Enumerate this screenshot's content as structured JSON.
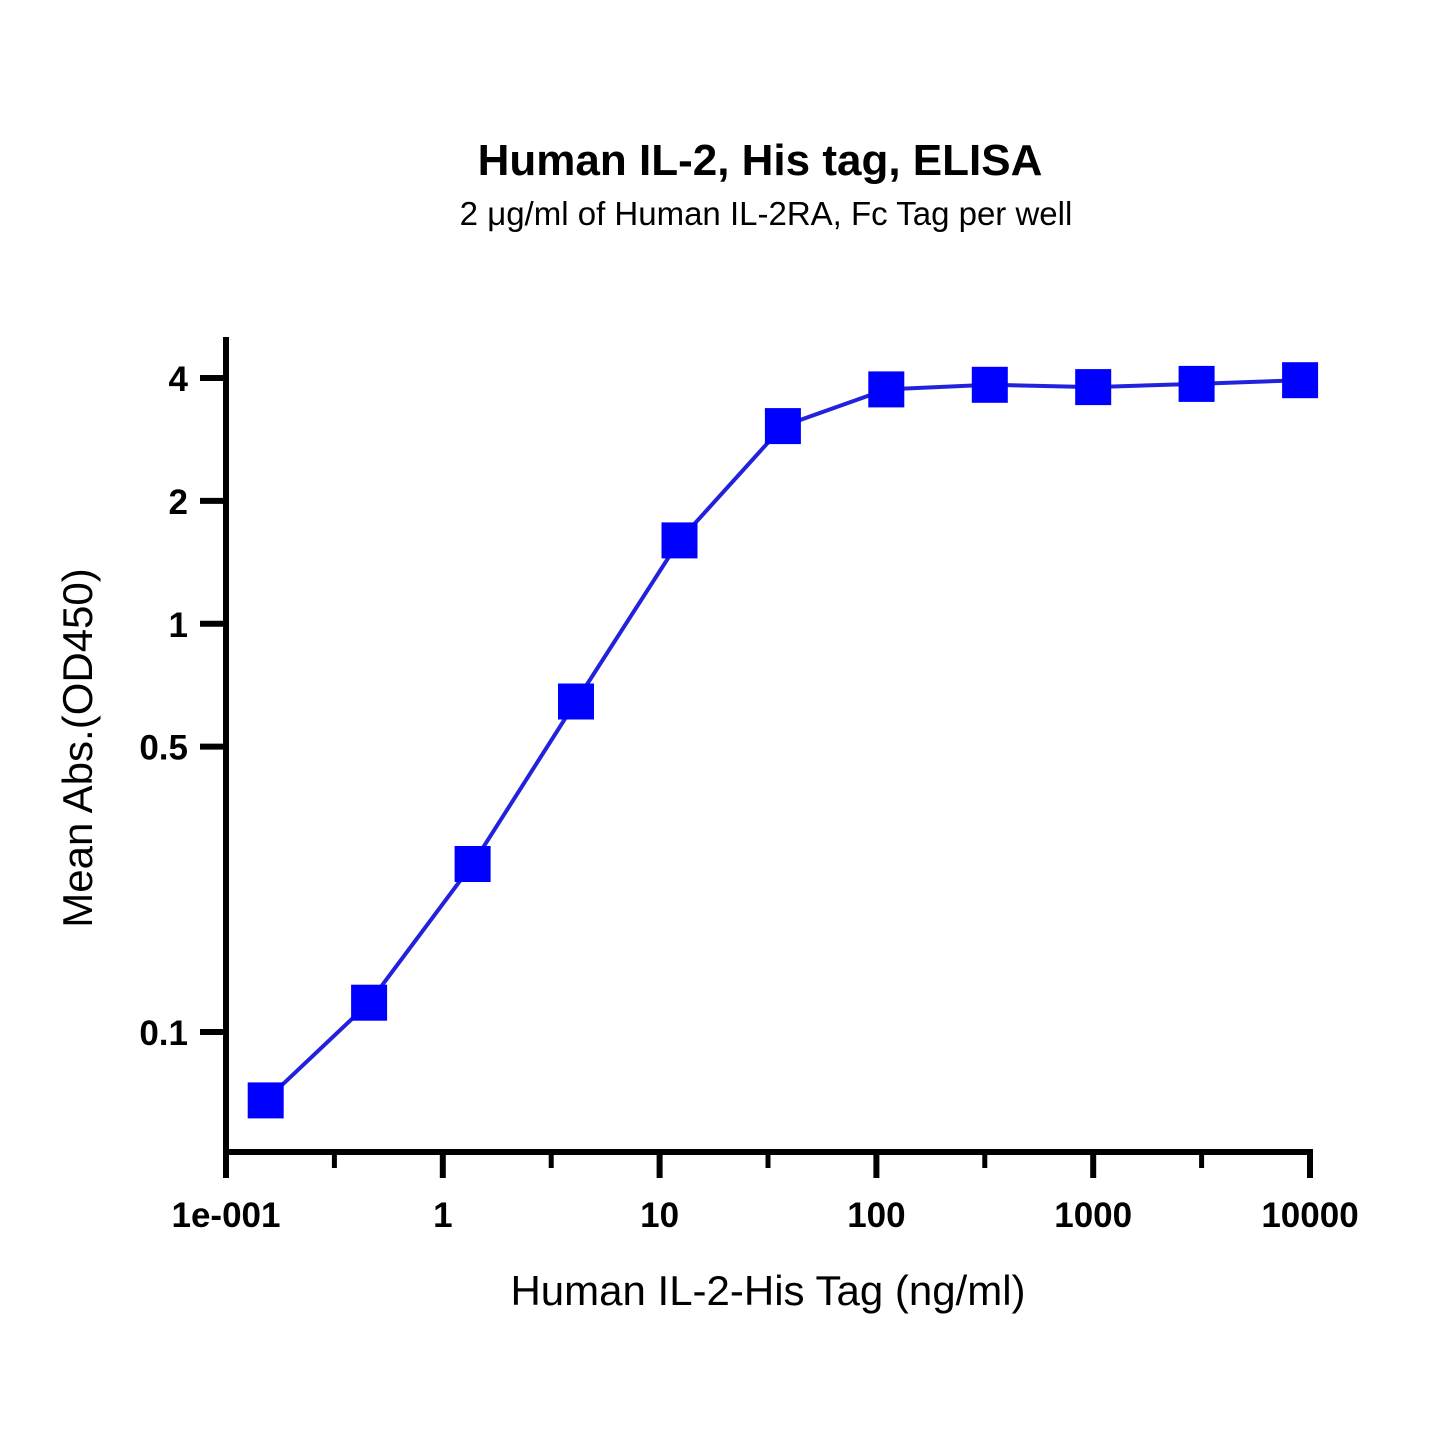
{
  "chart_data": {
    "type": "line",
    "title": "Human IL-2, His tag, ELISA",
    "subtitle": "2 μg/ml of Human IL-2RA, Fc Tag per well",
    "xlabel": "Human IL-2-His Tag (ng/ml)",
    "ylabel": "Mean Abs.(OD450)",
    "x_scale": "log",
    "y_scale": "log",
    "xlim": [
      0.1,
      10000
    ],
    "ylim": [
      0.05,
      5
    ],
    "x_ticks": [
      {
        "value": 0.1,
        "label": "1e-001"
      },
      {
        "value": 1,
        "label": "1"
      },
      {
        "value": 10,
        "label": "10"
      },
      {
        "value": 100,
        "label": "100"
      },
      {
        "value": 1000,
        "label": "1000"
      },
      {
        "value": 10000,
        "label": "10000"
      }
    ],
    "y_ticks": [
      {
        "value": 0.1,
        "label": "0.1"
      },
      {
        "value": 0.5,
        "label": "0.5"
      },
      {
        "value": 1,
        "label": "1"
      },
      {
        "value": 2,
        "label": "2"
      },
      {
        "value": 4,
        "label": "4"
      }
    ],
    "grid": false,
    "series": [
      {
        "x": [
          0.1524,
          0.4572,
          1.372,
          4.115,
          12.35,
          37.04,
          111.1,
          333.3,
          1000,
          3000,
          9000
        ],
        "y": [
          0.068,
          0.118,
          0.258,
          0.645,
          1.6,
          3.05,
          3.75,
          3.85,
          3.8,
          3.87,
          3.95
        ],
        "color": "#0000ff",
        "marker": "square"
      }
    ]
  }
}
